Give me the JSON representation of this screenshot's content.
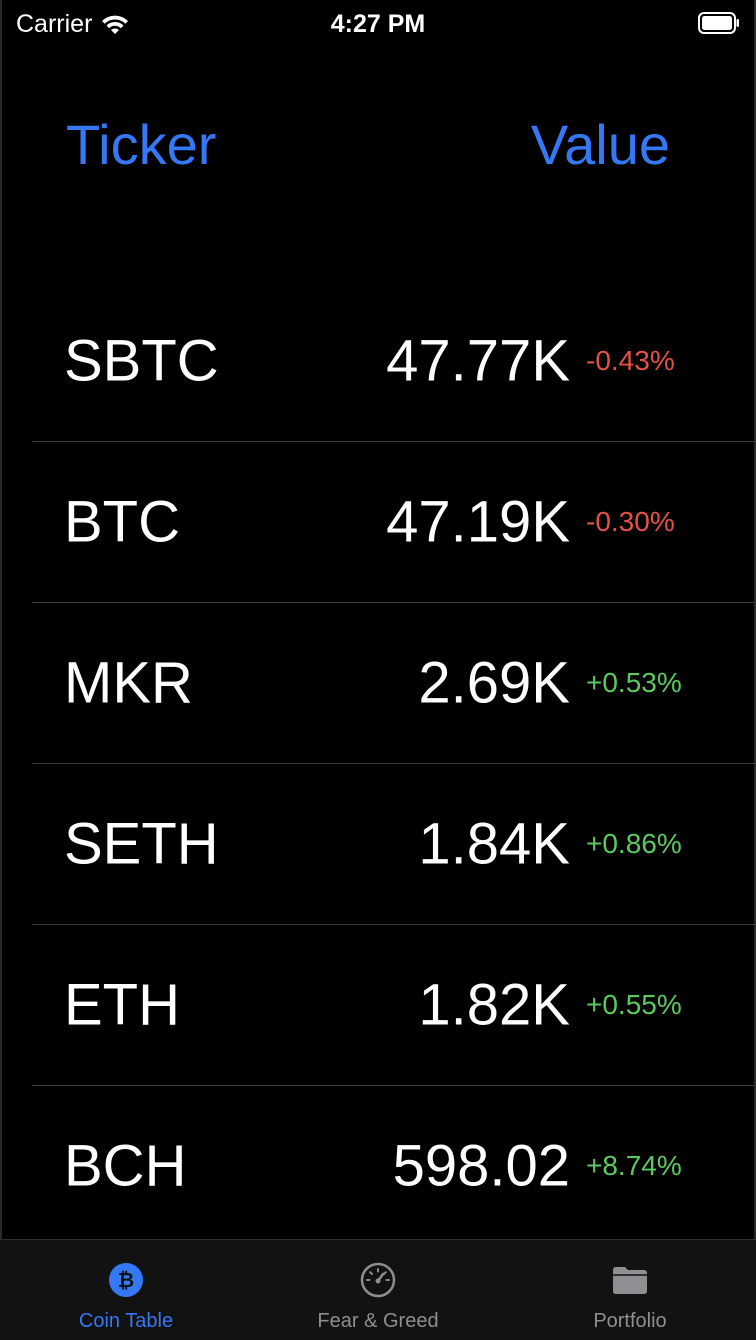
{
  "status_bar": {
    "carrier": "Carrier",
    "time": "4:27 PM"
  },
  "header": {
    "ticker_label": "Ticker",
    "value_label": "Value"
  },
  "coins": [
    {
      "ticker": "SBTC",
      "value": "47.77K",
      "change": "-0.43%",
      "direction": "down"
    },
    {
      "ticker": "BTC",
      "value": "47.19K",
      "change": "-0.30%",
      "direction": "down"
    },
    {
      "ticker": "MKR",
      "value": "2.69K",
      "change": "+0.53%",
      "direction": "up"
    },
    {
      "ticker": "SETH",
      "value": "1.84K",
      "change": "+0.86%",
      "direction": "up"
    },
    {
      "ticker": "ETH",
      "value": "1.82K",
      "change": "+0.55%",
      "direction": "up"
    },
    {
      "ticker": "BCH",
      "value": "598.02",
      "change": "+8.74%",
      "direction": "up"
    }
  ],
  "colors": {
    "accent": "#3478f6",
    "negative": "#e5504a",
    "positive": "#5cc95f",
    "inactive": "#8e8e93"
  },
  "tabs": [
    {
      "label": "Coin Table",
      "icon": "bitcoin-circle-icon",
      "active": true
    },
    {
      "label": "Fear & Greed",
      "icon": "speedometer-icon",
      "active": false
    },
    {
      "label": "Portfolio",
      "icon": "folder-icon",
      "active": false
    }
  ]
}
